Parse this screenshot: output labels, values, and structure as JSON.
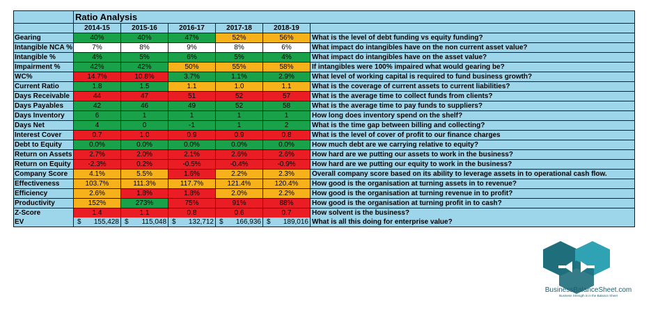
{
  "title": "Ratio Analysis",
  "years": [
    "2014-15",
    "2015-16",
    "2016-17",
    "2017-18",
    "2018-19"
  ],
  "rows": [
    {
      "label": "Gearing",
      "values": [
        "40%",
        "40%",
        "47%",
        "52%",
        "56%"
      ],
      "colors": [
        "g",
        "g",
        "g",
        "o",
        "o"
      ],
      "question": "What is the level of debt funding vs equity funding?"
    },
    {
      "label": "Intangible NCA %",
      "values": [
        "7%",
        "8%",
        "9%",
        "8%",
        "6%"
      ],
      "colors": [
        "w",
        "w",
        "w",
        "w",
        "w"
      ],
      "question": "What impact do intangibles have on the non current asset value?"
    },
    {
      "label": "Intangible %",
      "values": [
        "4%",
        "5%",
        "6%",
        "5%",
        "4%"
      ],
      "colors": [
        "g",
        "g",
        "g",
        "g",
        "g"
      ],
      "question": "What impact do intangibles have on the asset value?"
    },
    {
      "label": "Impairment %",
      "values": [
        "42%",
        "42%",
        "50%",
        "55%",
        "58%"
      ],
      "colors": [
        "g",
        "g",
        "o",
        "o",
        "o"
      ],
      "question": "If intangibles were 100% impaired what would gearing be?"
    },
    {
      "label": "WC%",
      "values": [
        "14.7%",
        "10.8%",
        "3.7%",
        "1.1%",
        "2.9%"
      ],
      "colors": [
        "r",
        "r",
        "g",
        "g",
        "g"
      ],
      "question": "What level of working capital is required to fund business growth?"
    },
    {
      "label": "Current Ratio",
      "values": [
        "1.8",
        "1.5",
        "1.1",
        "1.0",
        "1.1"
      ],
      "colors": [
        "g",
        "g",
        "o",
        "o",
        "o"
      ],
      "question": "What is the coverage of current assets to current liabilities?"
    },
    {
      "label": "Days Receivable",
      "values": [
        "44",
        "47",
        "51",
        "52",
        "57"
      ],
      "colors": [
        "r",
        "r",
        "r",
        "r",
        "r"
      ],
      "question": "What is the average time to collect funds from clients?"
    },
    {
      "label": "Days Payables",
      "values": [
        "42",
        "46",
        "49",
        "52",
        "58"
      ],
      "colors": [
        "g",
        "g",
        "g",
        "g",
        "g"
      ],
      "question": "What is the average time to pay funds to suppliers?"
    },
    {
      "label": "Days Inventory",
      "values": [
        "6",
        "1",
        "1",
        "1",
        "1"
      ],
      "colors": [
        "g",
        "g",
        "g",
        "g",
        "g"
      ],
      "question": "How long does inventory spend on the shelf?"
    },
    {
      "label": "Days Net",
      "values": [
        "4",
        "0",
        "-1",
        "1",
        "2"
      ],
      "colors": [
        "g",
        "g",
        "g",
        "g",
        "g"
      ],
      "question": "What is the time gap between billing and collecting?"
    },
    {
      "label": "Interest Cover",
      "values": [
        "0.7",
        "1.0",
        "0.9",
        "0.9",
        "0.8"
      ],
      "colors": [
        "r",
        "r",
        "r",
        "r",
        "r"
      ],
      "question": "What is the level of cover of profit to our finance charges"
    },
    {
      "label": "Debt to Equity",
      "values": [
        "0.0%",
        "0.0%",
        "0.0%",
        "0.0%",
        "0.0%"
      ],
      "colors": [
        "g",
        "g",
        "g",
        "g",
        "g"
      ],
      "question": "How much debt are we carrying relative to equity?"
    },
    {
      "label": "Return on Assets",
      "values": [
        "2.7%",
        "2.0%",
        "2.1%",
        "2.6%",
        "2.6%"
      ],
      "colors": [
        "r",
        "r",
        "r",
        "r",
        "r"
      ],
      "question": "How hard are we putting our assets to work in the business?"
    },
    {
      "label": "Return on Equity",
      "values": [
        "-2.3%",
        "0.2%",
        "-0.5%",
        "-0.4%",
        "-0.9%"
      ],
      "colors": [
        "r",
        "r",
        "r",
        "r",
        "r"
      ],
      "question": "How hard are we putting our equity to work in the business?"
    },
    {
      "label": "Company Score",
      "values": [
        "4.1%",
        "5.5%",
        "1.6%",
        "2.2%",
        "2.3%"
      ],
      "colors": [
        "o",
        "o",
        "r",
        "o",
        "o"
      ],
      "question": "Overall company score based on its ability to leverage assets in to operational cash flow."
    },
    {
      "label": "Effectiveness",
      "values": [
        "103.7%",
        "111.3%",
        "117.7%",
        "121.4%",
        "120.4%"
      ],
      "colors": [
        "o",
        "o",
        "o",
        "o",
        "o"
      ],
      "question": "How good is the organisation at turning assets in to revenue?"
    },
    {
      "label": "Efficiency",
      "values": [
        "2.6%",
        "1.8%",
        "1.8%",
        "2.0%",
        "2.2%"
      ],
      "colors": [
        "o",
        "r",
        "r",
        "o",
        "o"
      ],
      "question": "How good is the organisation at turning revenue in to profit?"
    },
    {
      "label": "Productivity",
      "values": [
        "152%",
        "273%",
        "75%",
        "91%",
        "88%"
      ],
      "colors": [
        "o",
        "g",
        "r",
        "r",
        "r"
      ],
      "question": "How good is the organisation at turning profit in to cash?"
    },
    {
      "label": "Z-Score",
      "values": [
        "1.4",
        "1.1",
        "0.8",
        "0.6",
        "0.7"
      ],
      "colors": [
        "r",
        "r",
        "r",
        "r",
        "r"
      ],
      "question": "How solvent is the business?"
    }
  ],
  "ev_row": {
    "label": "EV",
    "currency": "$",
    "values": [
      "155,428",
      "115,048",
      "132,712",
      "166,936",
      "189,016"
    ],
    "question": "What is all this doing for enterprise value?"
  },
  "logo": {
    "brand": "BusinessBalanceSheet.com",
    "tagline": "Business Strength is in the Balance Sheet",
    "colors": {
      "dark": "#1f6e7c",
      "light": "#2fa3b4"
    }
  }
}
